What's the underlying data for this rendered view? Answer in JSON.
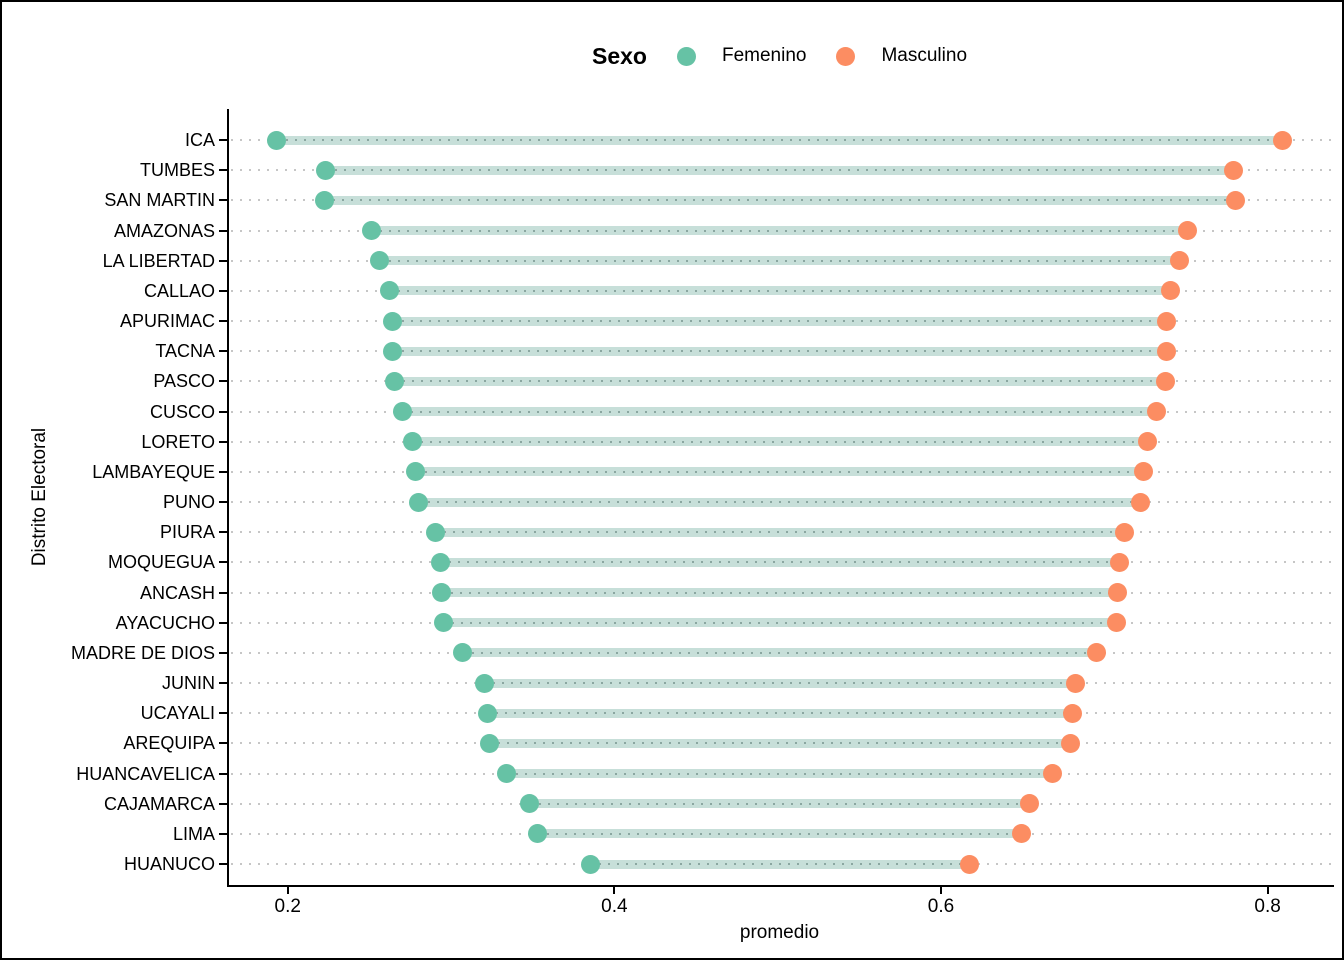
{
  "legend": {
    "title": "Sexo",
    "items": [
      {
        "label": "Femenino",
        "color": "#66C2A5"
      },
      {
        "label": "Masculino",
        "color": "#FC8D62"
      }
    ]
  },
  "axes": {
    "x_label": "promedio",
    "y_label": "Distrito Electoral",
    "x_ticks": [
      "0.2",
      "0.4",
      "0.6",
      "0.8"
    ],
    "x_tick_values": [
      0.2,
      0.4,
      0.6,
      0.8
    ],
    "x_min": 0.1628,
    "x_max": 0.8394
  },
  "chart_data": {
    "type": "scatter",
    "subtype": "dumbbell",
    "title": "",
    "xlabel": "promedio",
    "ylabel": "Distrito Electoral",
    "xlim": [
      0.1628,
      0.8394
    ],
    "legend_title": "Sexo",
    "legend_position": "top-center",
    "grid": "horizontal dotted gray lines per category",
    "connector_color": "#c7dfd9",
    "categories": [
      "ICA",
      "TUMBES",
      "SAN MARTIN",
      "AMAZONAS",
      "LA LIBERTAD",
      "CALLAO",
      "APURIMAC",
      "TACNA",
      "PASCO",
      "CUSCO",
      "LORETO",
      "LAMBAYEQUE",
      "PUNO",
      "PIURA",
      "MOQUEGUA",
      "ANCASH",
      "AYACUCHO",
      "MADRE DE DIOS",
      "JUNIN",
      "UCAYALI",
      "AREQUIPA",
      "HUANCAVELICA",
      "CAJAMARCA",
      "LIMA",
      "HUANUCO"
    ],
    "series": [
      {
        "name": "Femenino",
        "color": "#66C2A5",
        "values": [
          0.192,
          0.222,
          0.221,
          0.25,
          0.255,
          0.261,
          0.263,
          0.263,
          0.264,
          0.269,
          0.275,
          0.277,
          0.279,
          0.289,
          0.292,
          0.293,
          0.294,
          0.306,
          0.319,
          0.321,
          0.322,
          0.333,
          0.347,
          0.352,
          0.384
        ]
      },
      {
        "name": "Masculino",
        "color": "#FC8D62",
        "values": [
          0.808,
          0.778,
          0.779,
          0.75,
          0.745,
          0.739,
          0.737,
          0.737,
          0.736,
          0.731,
          0.725,
          0.723,
          0.721,
          0.711,
          0.708,
          0.707,
          0.706,
          0.694,
          0.681,
          0.679,
          0.678,
          0.667,
          0.653,
          0.648,
          0.616
        ]
      }
    ]
  }
}
